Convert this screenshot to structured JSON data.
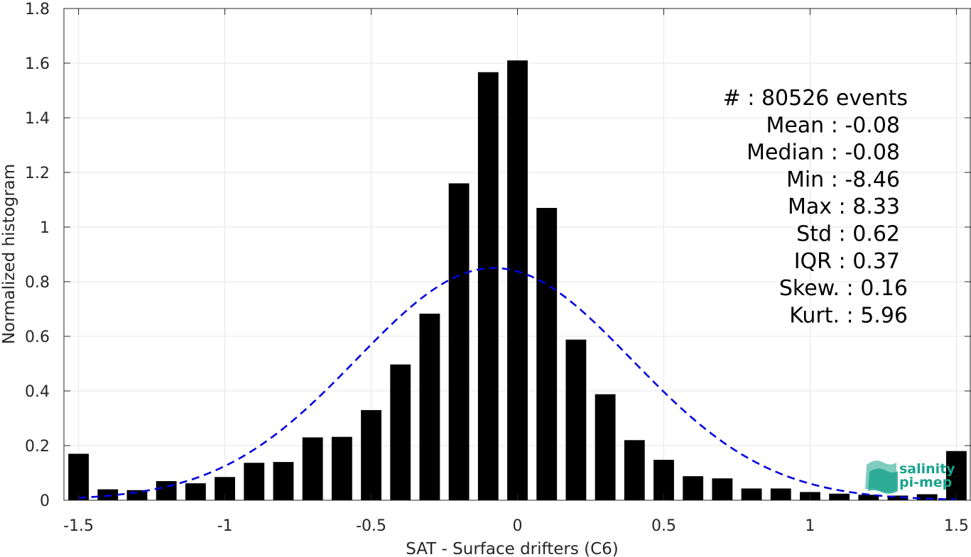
{
  "chart_data": {
    "type": "bar",
    "xlabel": "SAT - Surface drifters (C6)",
    "ylabel": "Normalized histogram",
    "xlim": [
      -1.55,
      1.55
    ],
    "ylim": [
      0,
      1.8
    ],
    "x_ticks": [
      -1.5,
      -1,
      -0.5,
      0,
      0.5,
      1,
      1.5
    ],
    "x_tick_labels": [
      "-1.5",
      "-1",
      "-0.5",
      "0",
      "0.5",
      "1",
      "1.5"
    ],
    "y_ticks": [
      0,
      0.2,
      0.4,
      0.6,
      0.8,
      1,
      1.2,
      1.4,
      1.6,
      1.8
    ],
    "y_tick_labels": [
      "0",
      "0.2",
      "0.4",
      "0.6",
      "0.8",
      "1",
      "1.2",
      "1.4",
      "1.6",
      "1.8"
    ],
    "grid": true,
    "bar_color": "#000000",
    "bars": [
      {
        "x": -1.5,
        "y": 0.17
      },
      {
        "x": -1.4,
        "y": 0.04
      },
      {
        "x": -1.3,
        "y": 0.037
      },
      {
        "x": -1.2,
        "y": 0.07
      },
      {
        "x": -1.1,
        "y": 0.062
      },
      {
        "x": -1.0,
        "y": 0.085
      },
      {
        "x": -0.9,
        "y": 0.137
      },
      {
        "x": -0.8,
        "y": 0.14
      },
      {
        "x": -0.7,
        "y": 0.23
      },
      {
        "x": -0.6,
        "y": 0.232
      },
      {
        "x": -0.5,
        "y": 0.33
      },
      {
        "x": -0.4,
        "y": 0.497
      },
      {
        "x": -0.3,
        "y": 0.683
      },
      {
        "x": -0.2,
        "y": 1.16
      },
      {
        "x": -0.1,
        "y": 1.567
      },
      {
        "x": 0.0,
        "y": 1.61
      },
      {
        "x": 0.1,
        "y": 1.07
      },
      {
        "x": 0.2,
        "y": 0.588
      },
      {
        "x": 0.3,
        "y": 0.388
      },
      {
        "x": 0.4,
        "y": 0.22
      },
      {
        "x": 0.5,
        "y": 0.148
      },
      {
        "x": 0.6,
        "y": 0.088
      },
      {
        "x": 0.7,
        "y": 0.08
      },
      {
        "x": 0.8,
        "y": 0.043
      },
      {
        "x": 0.9,
        "y": 0.043
      },
      {
        "x": 1.0,
        "y": 0.03
      },
      {
        "x": 1.1,
        "y": 0.024
      },
      {
        "x": 1.2,
        "y": 0.02
      },
      {
        "x": 1.3,
        "y": 0.017
      },
      {
        "x": 1.4,
        "y": 0.022
      },
      {
        "x": 1.5,
        "y": 0.18
      }
    ],
    "gaussian_fit": {
      "mean": -0.08,
      "std": 0.47,
      "peak": 0.85,
      "x_range": [
        -1.5,
        1.5
      ],
      "color": "#0000dd",
      "style": "dashed"
    },
    "stats_lines": [
      "#  : 80526 events",
      "Mean : -0.08",
      "Median : -0.08",
      "Min : -8.46",
      "Max : 8.33",
      "Std : 0.62",
      "IQR : 0.37",
      "Skew. : 0.16",
      "Kurt. : 5.96"
    ],
    "logo": {
      "line1": "salinity",
      "line2": "pi-mep",
      "color": "#19a38c"
    }
  }
}
